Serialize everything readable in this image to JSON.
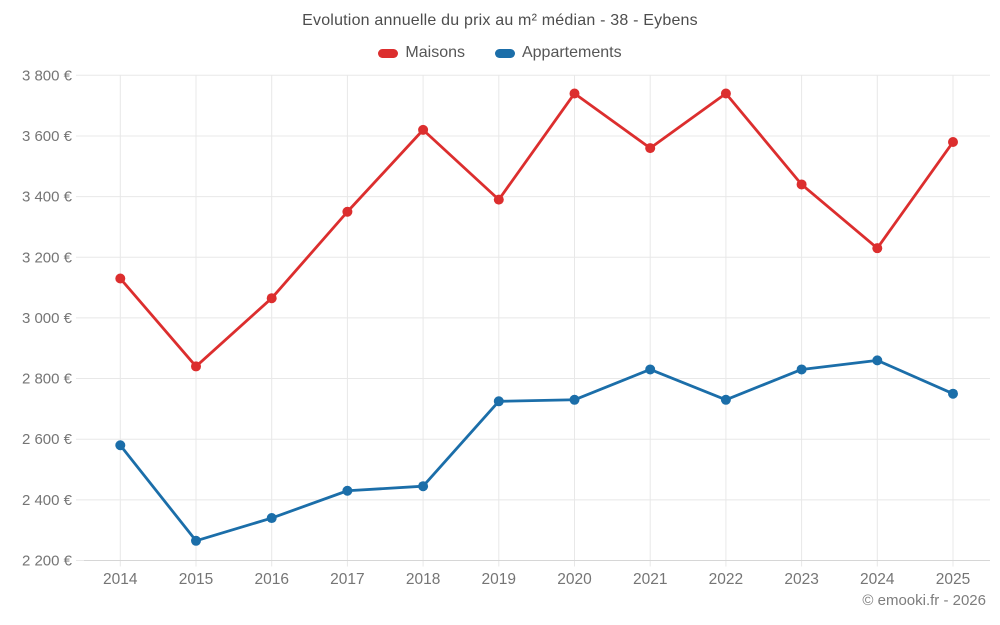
{
  "chart_data": {
    "type": "line",
    "title": "Evolution annuelle du prix au m² médian - 38 - Eybens",
    "x": [
      2014,
      2015,
      2016,
      2017,
      2018,
      2019,
      2020,
      2021,
      2022,
      2023,
      2024,
      2025
    ],
    "series": [
      {
        "name": "Maisons",
        "color": "#dc2e2e",
        "values": [
          3130,
          2840,
          3065,
          3350,
          3620,
          3390,
          3740,
          3560,
          3740,
          3440,
          3230,
          3580
        ]
      },
      {
        "name": "Appartements",
        "color": "#1b6ea9",
        "values": [
          2580,
          2265,
          2340,
          2430,
          2445,
          2725,
          2730,
          2830,
          2730,
          2830,
          2860,
          2750
        ]
      }
    ],
    "ylim": [
      2200,
      3800
    ],
    "y_ticks": {
      "values": [
        2200,
        2400,
        2600,
        2800,
        3000,
        3200,
        3400,
        3600,
        3800
      ],
      "labels": [
        "2 200 €",
        "2 400 €",
        "2 600 €",
        "2 800 €",
        "3 000 €",
        "3 200 €",
        "3 400 €",
        "3 600 €",
        "3 800 €"
      ]
    },
    "grid": true,
    "legend_position": "top",
    "footer": "© emooki.fr - 2026",
    "colors": {
      "grid": "#e8e8e8",
      "axis": "#d6d6d6",
      "tick_text": "#757575"
    }
  }
}
